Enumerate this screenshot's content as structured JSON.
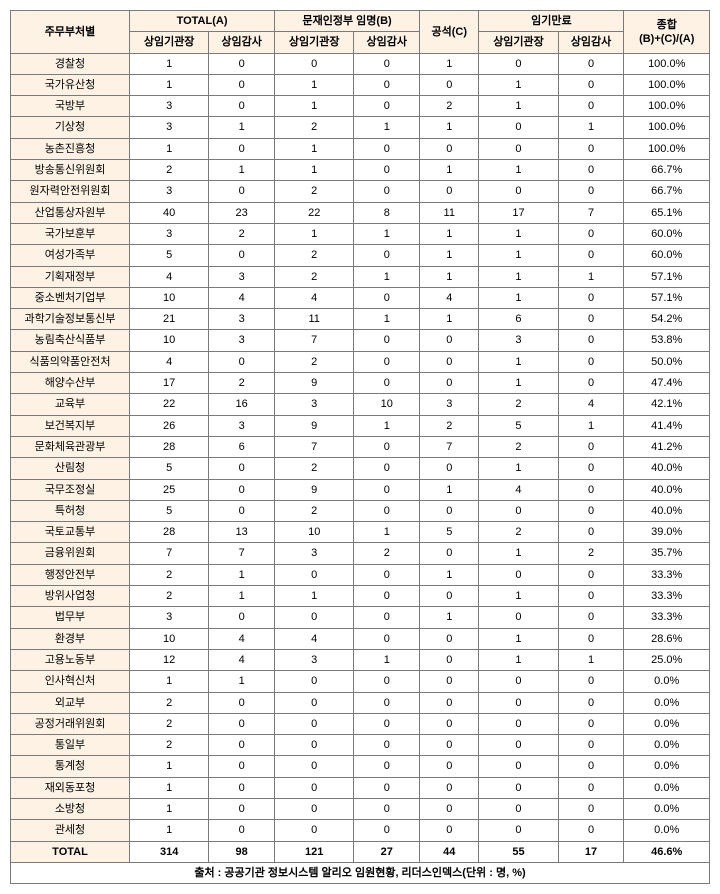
{
  "header": {
    "dept": "주무부처별",
    "totalA": "TOTAL(A)",
    "appointB": "문재인정부 임명(B)",
    "vacantC": "공석(C)",
    "termEnd": "임기만료",
    "overall": "종합\n(B)+(C)/(A)",
    "chief": "상임기관장",
    "auditor": "상임감사"
  },
  "rows": [
    {
      "dept": "경찰청",
      "a1": "1",
      "a2": "0",
      "b1": "0",
      "b2": "0",
      "c": "1",
      "t1": "0",
      "t2": "0",
      "r": "100.0%"
    },
    {
      "dept": "국가유산청",
      "a1": "1",
      "a2": "0",
      "b1": "1",
      "b2": "0",
      "c": "0",
      "t1": "1",
      "t2": "0",
      "r": "100.0%"
    },
    {
      "dept": "국방부",
      "a1": "3",
      "a2": "0",
      "b1": "1",
      "b2": "0",
      "c": "2",
      "t1": "1",
      "t2": "0",
      "r": "100.0%"
    },
    {
      "dept": "기상청",
      "a1": "3",
      "a2": "1",
      "b1": "2",
      "b2": "1",
      "c": "1",
      "t1": "0",
      "t2": "1",
      "r": "100.0%"
    },
    {
      "dept": "농촌진흥청",
      "a1": "1",
      "a2": "0",
      "b1": "1",
      "b2": "0",
      "c": "0",
      "t1": "0",
      "t2": "0",
      "r": "100.0%"
    },
    {
      "dept": "방송통신위원회",
      "a1": "2",
      "a2": "1",
      "b1": "1",
      "b2": "0",
      "c": "1",
      "t1": "1",
      "t2": "0",
      "r": "66.7%"
    },
    {
      "dept": "원자력안전위원회",
      "a1": "3",
      "a2": "0",
      "b1": "2",
      "b2": "0",
      "c": "0",
      "t1": "0",
      "t2": "0",
      "r": "66.7%"
    },
    {
      "dept": "산업통상자원부",
      "a1": "40",
      "a2": "23",
      "b1": "22",
      "b2": "8",
      "c": "11",
      "t1": "17",
      "t2": "7",
      "r": "65.1%"
    },
    {
      "dept": "국가보훈부",
      "a1": "3",
      "a2": "2",
      "b1": "1",
      "b2": "1",
      "c": "1",
      "t1": "1",
      "t2": "0",
      "r": "60.0%"
    },
    {
      "dept": "여성가족부",
      "a1": "5",
      "a2": "0",
      "b1": "2",
      "b2": "0",
      "c": "1",
      "t1": "1",
      "t2": "0",
      "r": "60.0%"
    },
    {
      "dept": "기획재정부",
      "a1": "4",
      "a2": "3",
      "b1": "2",
      "b2": "1",
      "c": "1",
      "t1": "1",
      "t2": "1",
      "r": "57.1%"
    },
    {
      "dept": "중소벤처기업부",
      "a1": "10",
      "a2": "4",
      "b1": "4",
      "b2": "0",
      "c": "4",
      "t1": "1",
      "t2": "0",
      "r": "57.1%"
    },
    {
      "dept": "과학기술정보통신부",
      "a1": "21",
      "a2": "3",
      "b1": "11",
      "b2": "1",
      "c": "1",
      "t1": "6",
      "t2": "0",
      "r": "54.2%"
    },
    {
      "dept": "농림축산식품부",
      "a1": "10",
      "a2": "3",
      "b1": "7",
      "b2": "0",
      "c": "0",
      "t1": "3",
      "t2": "0",
      "r": "53.8%"
    },
    {
      "dept": "식품의약품안전처",
      "a1": "4",
      "a2": "0",
      "b1": "2",
      "b2": "0",
      "c": "0",
      "t1": "1",
      "t2": "0",
      "r": "50.0%"
    },
    {
      "dept": "해양수산부",
      "a1": "17",
      "a2": "2",
      "b1": "9",
      "b2": "0",
      "c": "0",
      "t1": "1",
      "t2": "0",
      "r": "47.4%"
    },
    {
      "dept": "교육부",
      "a1": "22",
      "a2": "16",
      "b1": "3",
      "b2": "10",
      "c": "3",
      "t1": "2",
      "t2": "4",
      "r": "42.1%"
    },
    {
      "dept": "보건복지부",
      "a1": "26",
      "a2": "3",
      "b1": "9",
      "b2": "1",
      "c": "2",
      "t1": "5",
      "t2": "1",
      "r": "41.4%"
    },
    {
      "dept": "문화체육관광부",
      "a1": "28",
      "a2": "6",
      "b1": "7",
      "b2": "0",
      "c": "7",
      "t1": "2",
      "t2": "0",
      "r": "41.2%"
    },
    {
      "dept": "산림청",
      "a1": "5",
      "a2": "0",
      "b1": "2",
      "b2": "0",
      "c": "0",
      "t1": "1",
      "t2": "0",
      "r": "40.0%"
    },
    {
      "dept": "국무조정실",
      "a1": "25",
      "a2": "0",
      "b1": "9",
      "b2": "0",
      "c": "1",
      "t1": "4",
      "t2": "0",
      "r": "40.0%"
    },
    {
      "dept": "특허청",
      "a1": "5",
      "a2": "0",
      "b1": "2",
      "b2": "0",
      "c": "0",
      "t1": "0",
      "t2": "0",
      "r": "40.0%"
    },
    {
      "dept": "국토교통부",
      "a1": "28",
      "a2": "13",
      "b1": "10",
      "b2": "1",
      "c": "5",
      "t1": "2",
      "t2": "0",
      "r": "39.0%"
    },
    {
      "dept": "금융위원회",
      "a1": "7",
      "a2": "7",
      "b1": "3",
      "b2": "2",
      "c": "0",
      "t1": "1",
      "t2": "2",
      "r": "35.7%"
    },
    {
      "dept": "행정안전부",
      "a1": "2",
      "a2": "1",
      "b1": "0",
      "b2": "0",
      "c": "1",
      "t1": "0",
      "t2": "0",
      "r": "33.3%"
    },
    {
      "dept": "방위사업청",
      "a1": "2",
      "a2": "1",
      "b1": "1",
      "b2": "0",
      "c": "0",
      "t1": "1",
      "t2": "0",
      "r": "33.3%"
    },
    {
      "dept": "법무부",
      "a1": "3",
      "a2": "0",
      "b1": "0",
      "b2": "0",
      "c": "1",
      "t1": "0",
      "t2": "0",
      "r": "33.3%"
    },
    {
      "dept": "환경부",
      "a1": "10",
      "a2": "4",
      "b1": "4",
      "b2": "0",
      "c": "0",
      "t1": "1",
      "t2": "0",
      "r": "28.6%"
    },
    {
      "dept": "고용노동부",
      "a1": "12",
      "a2": "4",
      "b1": "3",
      "b2": "1",
      "c": "0",
      "t1": "1",
      "t2": "1",
      "r": "25.0%"
    },
    {
      "dept": "인사혁신처",
      "a1": "1",
      "a2": "1",
      "b1": "0",
      "b2": "0",
      "c": "0",
      "t1": "0",
      "t2": "0",
      "r": "0.0%"
    },
    {
      "dept": "외교부",
      "a1": "2",
      "a2": "0",
      "b1": "0",
      "b2": "0",
      "c": "0",
      "t1": "0",
      "t2": "0",
      "r": "0.0%"
    },
    {
      "dept": "공정거래위원회",
      "a1": "2",
      "a2": "0",
      "b1": "0",
      "b2": "0",
      "c": "0",
      "t1": "0",
      "t2": "0",
      "r": "0.0%"
    },
    {
      "dept": "통일부",
      "a1": "2",
      "a2": "0",
      "b1": "0",
      "b2": "0",
      "c": "0",
      "t1": "0",
      "t2": "0",
      "r": "0.0%"
    },
    {
      "dept": "통계청",
      "a1": "1",
      "a2": "0",
      "b1": "0",
      "b2": "0",
      "c": "0",
      "t1": "0",
      "t2": "0",
      "r": "0.0%"
    },
    {
      "dept": "재외동포청",
      "a1": "1",
      "a2": "0",
      "b1": "0",
      "b2": "0",
      "c": "0",
      "t1": "0",
      "t2": "0",
      "r": "0.0%"
    },
    {
      "dept": "소방청",
      "a1": "1",
      "a2": "0",
      "b1": "0",
      "b2": "0",
      "c": "0",
      "t1": "0",
      "t2": "0",
      "r": "0.0%"
    },
    {
      "dept": "관세청",
      "a1": "1",
      "a2": "0",
      "b1": "0",
      "b2": "0",
      "c": "0",
      "t1": "0",
      "t2": "0",
      "r": "0.0%"
    }
  ],
  "total": {
    "dept": "TOTAL",
    "a1": "314",
    "a2": "98",
    "b1": "121",
    "b2": "27",
    "c": "44",
    "t1": "55",
    "t2": "17",
    "r": "46.6%"
  },
  "source": "출처 : 공공기관 정보시스템 알리오 임원현황, 리더스인덱스(단위 : 명, %)"
}
